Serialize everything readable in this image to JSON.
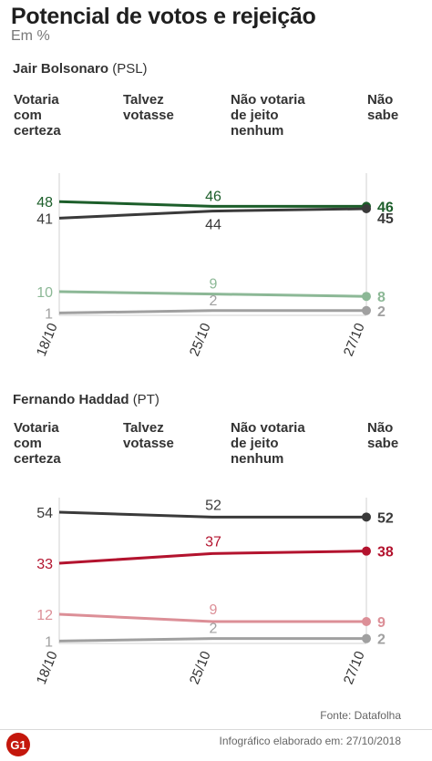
{
  "title": "Potencial de votos e rejeição",
  "subtitle": "Em %",
  "source": "Fonte: Datafolha",
  "credit": "Infográfico elaborado em: 27/10/2018",
  "logo_text": "G1",
  "colors": {
    "bolsonaro_green": "#1c5e2a",
    "bolsonaro_light": "#8cb896",
    "haddad_red": "#b3132e",
    "haddad_light": "#dc8f97",
    "dark": "#3a3a3a",
    "gray": "#a0a0a0",
    "dot_gray": "#d3d3d3",
    "logo_red": "#c4170c"
  },
  "candidates": [
    {
      "name": "Jair Bolsonaro",
      "party": "(PSL)",
      "categories": [
        {
          "label": "Votaria\ncom\ncerteza",
          "color": "#1c5e2a"
        },
        {
          "label": "Talvez\nvotasse",
          "color": "#8cb896"
        },
        {
          "label": "Não votaria\nde jeito\nnenhum",
          "color": "#3a3a3a"
        },
        {
          "label": "Não\nsabe",
          "color": "#a0a0a0"
        }
      ]
    },
    {
      "name": "Fernando Haddad",
      "party": "(PT)",
      "categories": [
        {
          "label": "Votaria\ncom\ncerteza",
          "color": "#b3132e"
        },
        {
          "label": "Talvez\nvotasse",
          "color": "#dc8f97"
        },
        {
          "label": "Não votaria\nde jeito\nnenhum",
          "color": "#3a3a3a"
        },
        {
          "label": "Não\nsabe",
          "color": "#a0a0a0"
        }
      ]
    }
  ],
  "chart_data": [
    {
      "type": "line",
      "title": "Jair Bolsonaro (PSL)",
      "categories": [
        "18/10",
        "25/10",
        "27/10"
      ],
      "series": [
        {
          "name": "Votaria com certeza",
          "values": [
            48,
            46,
            46
          ],
          "color": "#1c5e2a"
        },
        {
          "name": "Não votaria de jeito nenhum",
          "values": [
            41,
            44,
            45
          ],
          "color": "#3a3a3a"
        },
        {
          "name": "Talvez votasse",
          "values": [
            10,
            9,
            8
          ],
          "color": "#8cb896"
        },
        {
          "name": "Não sabe",
          "values": [
            1,
            2,
            2
          ],
          "color": "#a0a0a0"
        }
      ],
      "ylim": [
        0,
        60
      ]
    },
    {
      "type": "line",
      "title": "Fernando Haddad (PT)",
      "categories": [
        "18/10",
        "25/10",
        "27/10"
      ],
      "series": [
        {
          "name": "Não votaria de jeito nenhum",
          "values": [
            54,
            52,
            52
          ],
          "color": "#3a3a3a"
        },
        {
          "name": "Votaria com certeza",
          "values": [
            33,
            37,
            38
          ],
          "color": "#b3132e"
        },
        {
          "name": "Talvez votasse",
          "values": [
            12,
            9,
            9
          ],
          "color": "#dc8f97"
        },
        {
          "name": "Não sabe",
          "values": [
            1,
            2,
            2
          ],
          "color": "#a0a0a0"
        }
      ],
      "ylim": [
        0,
        60
      ]
    }
  ]
}
